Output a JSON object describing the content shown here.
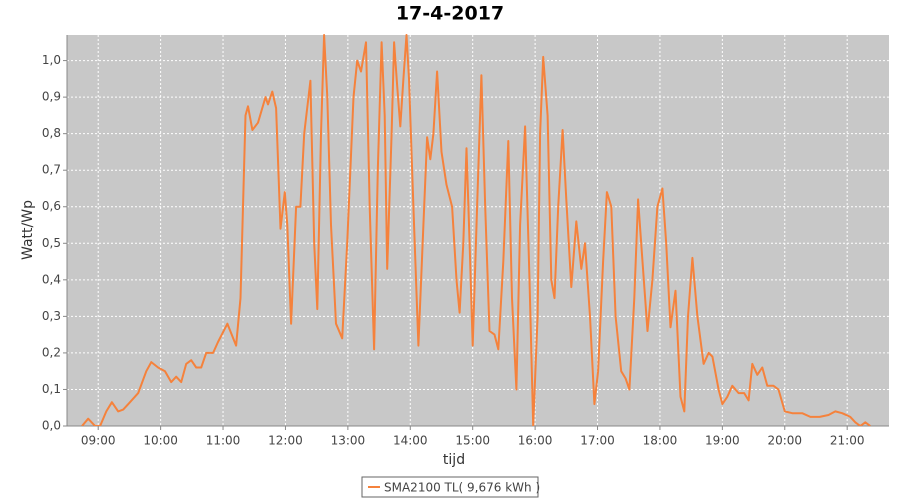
{
  "chart_data": {
    "type": "line",
    "title": "17-4-2017",
    "x_label": "tijd",
    "y_label": "Watt/Wp",
    "xlim": [
      8.5,
      21.67
    ],
    "ylim": [
      0,
      1.07
    ],
    "grid": true,
    "legend": "bottom",
    "xticks": [
      {
        "value": 9,
        "label": "09:00"
      },
      {
        "value": 10,
        "label": "10:00"
      },
      {
        "value": 11,
        "label": "11:00"
      },
      {
        "value": 12,
        "label": "12:00"
      },
      {
        "value": 13,
        "label": "13:00"
      },
      {
        "value": 14,
        "label": "14:00"
      },
      {
        "value": 15,
        "label": "15:00"
      },
      {
        "value": 16,
        "label": "16:00"
      },
      {
        "value": 17,
        "label": "17:00"
      },
      {
        "value": 18,
        "label": "18:00"
      },
      {
        "value": 19,
        "label": "19:00"
      },
      {
        "value": 20,
        "label": "20:00"
      },
      {
        "value": 21,
        "label": "21:00"
      }
    ],
    "yticks": [
      {
        "value": 0,
        "label": "0,0"
      },
      {
        "value": 0.1,
        "label": "0,1"
      },
      {
        "value": 0.2,
        "label": "0,2"
      },
      {
        "value": 0.3,
        "label": "0,3"
      },
      {
        "value": 0.4,
        "label": "0,4"
      },
      {
        "value": 0.5,
        "label": "0,5"
      },
      {
        "value": 0.6,
        "label": "0,6"
      },
      {
        "value": 0.7,
        "label": "0,7"
      },
      {
        "value": 0.8,
        "label": "0,8"
      },
      {
        "value": 0.9,
        "label": "0,9"
      },
      {
        "value": 1,
        "label": "1,0"
      }
    ],
    "x": [
      8.74,
      8.84,
      8.95,
      9.03,
      9.13,
      9.22,
      9.32,
      9.4,
      9.51,
      9.64,
      9.77,
      9.85,
      9.96,
      10.07,
      10.17,
      10.25,
      10.33,
      10.41,
      10.49,
      10.57,
      10.65,
      10.73,
      10.84,
      10.92,
      11.07,
      11.21,
      11.28,
      11.36,
      11.4,
      11.47,
      11.56,
      11.68,
      11.72,
      11.79,
      11.85,
      11.92,
      11.99,
      12.03,
      12.09,
      12.17,
      12.24,
      12.3,
      12.4,
      12.46,
      12.51,
      12.57,
      12.62,
      12.67,
      12.73,
      12.81,
      12.91,
      12.99,
      13.09,
      13.15,
      13.21,
      13.29,
      13.35,
      13.42,
      13.48,
      13.54,
      13.59,
      13.63,
      13.7,
      13.74,
      13.79,
      13.84,
      13.89,
      13.94,
      13.98,
      14.05,
      14.13,
      14.21,
      14.27,
      14.32,
      14.37,
      14.43,
      14.5,
      14.58,
      14.67,
      14.74,
      14.79,
      14.85,
      14.9,
      14.95,
      15.0,
      15.07,
      15.14,
      15.2,
      15.27,
      15.35,
      15.41,
      15.49,
      15.57,
      15.63,
      15.7,
      15.76,
      15.84,
      15.91,
      15.97,
      16.04,
      16.08,
      16.13,
      16.2,
      16.26,
      16.31,
      16.37,
      16.44,
      16.5,
      16.58,
      16.66,
      16.74,
      16.8,
      16.88,
      16.95,
      17.01,
      17.09,
      17.15,
      17.22,
      17.29,
      17.38,
      17.45,
      17.51,
      17.59,
      17.65,
      17.72,
      17.8,
      17.88,
      17.96,
      18.04,
      18.1,
      18.17,
      18.25,
      18.33,
      18.39,
      18.45,
      18.52,
      18.6,
      18.7,
      18.78,
      18.84,
      18.94,
      19.0,
      19.08,
      19.16,
      19.26,
      19.35,
      19.42,
      19.48,
      19.56,
      19.64,
      19.72,
      19.82,
      19.9,
      20.0,
      20.12,
      20.28,
      20.41,
      20.56,
      20.7,
      20.81,
      20.92,
      21.05,
      21.13,
      21.21,
      21.29,
      21.37
    ],
    "series": [
      {
        "name": "SMA2100 TL( 9,676 kWh )",
        "color": "#f5823c",
        "values": [
          0,
          0.02,
          0,
          0,
          0.04,
          0.065,
          0.04,
          0.045,
          0.065,
          0.09,
          0.15,
          0.175,
          0.16,
          0.15,
          0.12,
          0.135,
          0.12,
          0.17,
          0.18,
          0.16,
          0.16,
          0.2,
          0.2,
          0.23,
          0.28,
          0.22,
          0.35,
          0.85,
          0.875,
          0.81,
          0.83,
          0.9,
          0.88,
          0.915,
          0.87,
          0.54,
          0.64,
          0.55,
          0.28,
          0.6,
          0.6,
          0.8,
          0.945,
          0.5,
          0.32,
          0.8,
          1.07,
          0.9,
          0.55,
          0.28,
          0.24,
          0.5,
          0.9,
          1.0,
          0.97,
          1.05,
          0.6,
          0.21,
          0.7,
          1.05,
          0.85,
          0.43,
          0.8,
          1.05,
          0.93,
          0.82,
          0.95,
          1.07,
          0.95,
          0.6,
          0.22,
          0.55,
          0.79,
          0.73,
          0.8,
          0.97,
          0.75,
          0.66,
          0.6,
          0.4,
          0.31,
          0.5,
          0.76,
          0.5,
          0.22,
          0.6,
          0.96,
          0.6,
          0.26,
          0.25,
          0.21,
          0.45,
          0.78,
          0.35,
          0.1,
          0.55,
          0.82,
          0.4,
          0,
          0.3,
          0.8,
          1.01,
          0.85,
          0.4,
          0.35,
          0.6,
          0.81,
          0.62,
          0.38,
          0.56,
          0.43,
          0.5,
          0.3,
          0.06,
          0.15,
          0.45,
          0.64,
          0.6,
          0.3,
          0.15,
          0.13,
          0.1,
          0.35,
          0.62,
          0.45,
          0.26,
          0.4,
          0.6,
          0.65,
          0.5,
          0.27,
          0.37,
          0.08,
          0.04,
          0.3,
          0.46,
          0.3,
          0.17,
          0.2,
          0.19,
          0.1,
          0.06,
          0.08,
          0.11,
          0.09,
          0.09,
          0.07,
          0.17,
          0.14,
          0.16,
          0.11,
          0.11,
          0.1,
          0.04,
          0.035,
          0.035,
          0.025,
          0.025,
          0.03,
          0.04,
          0.035,
          0.025,
          0.01,
          0,
          0.01,
          0
        ]
      }
    ]
  }
}
